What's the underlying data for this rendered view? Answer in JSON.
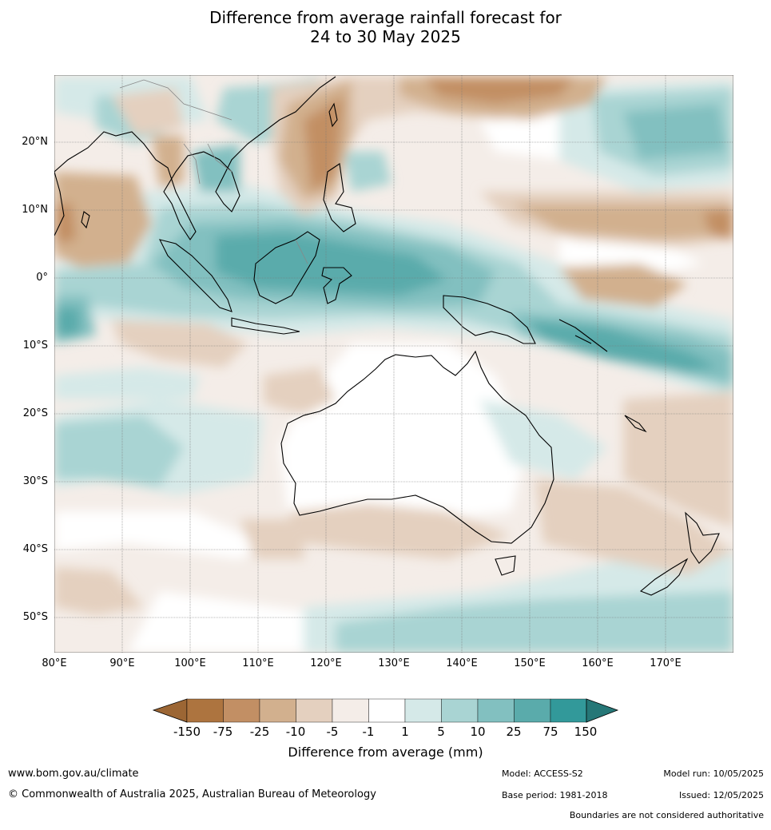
{
  "title_line1": "Difference from average rainfall forecast for",
  "title_line2": "24 to 30 May 2025",
  "latitudes": [
    "20°N",
    "10°N",
    "0°",
    "10°S",
    "20°S",
    "30°S",
    "40°S",
    "50°S"
  ],
  "longitudes": [
    "80°E",
    "90°E",
    "100°E",
    "110°E",
    "120°E",
    "130°E",
    "140°E",
    "150°E",
    "160°E",
    "170°E"
  ],
  "colorbar": {
    "title": "Difference from average (mm)",
    "labels": [
      "-150",
      "-75",
      "-25",
      "-10",
      "-5",
      "-1",
      "1",
      "5",
      "10",
      "25",
      "75",
      "150"
    ],
    "colors": [
      "#9c6634",
      "#ad743f",
      "#c28f64",
      "#d2b08e",
      "#e4d0bf",
      "#f4ede8",
      "#ffffff",
      "#d5e9e8",
      "#a9d4d3",
      "#82c0c0",
      "#5aabab",
      "#32999a",
      "#267777"
    ]
  },
  "footer": {
    "url": "www.bom.gov.au/climate",
    "copyright": "© Commonwealth of Australia 2025, Australian Bureau of Meteorology",
    "model": "Model: ACCESS-S2",
    "base_period": "Base period: 1981-2018",
    "model_run": "Model run: 10/05/2025",
    "issued": "Issued: 12/05/2025",
    "disclaimer": "Boundaries are not considered authoritative"
  }
}
